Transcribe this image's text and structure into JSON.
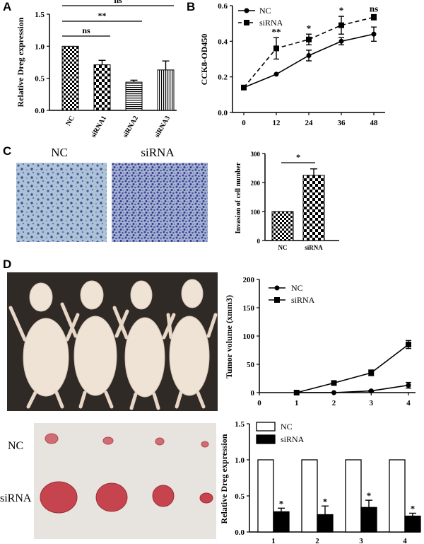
{
  "panels": {
    "a": {
      "letter": "A"
    },
    "b": {
      "letter": "B"
    },
    "c": {
      "letter": "C",
      "photo_labels": [
        "NC",
        "siRNA"
      ]
    },
    "d": {
      "letter": "D",
      "tumor_row_labels": [
        "NC",
        "siRNA"
      ]
    }
  },
  "chart_data": [
    {
      "id": "A",
      "type": "bar",
      "ylabel": "Relative Dreg expression",
      "categories": [
        "NC",
        "siRNA1",
        "siRNA2",
        "siRNA3"
      ],
      "values": [
        1.0,
        0.71,
        0.44,
        0.63
      ],
      "errors": [
        0.0,
        0.07,
        0.03,
        0.14
      ],
      "ylim": [
        0,
        1.5
      ],
      "yticks": [
        "0.0",
        "0.5",
        "1.0",
        "1.5"
      ],
      "patterns": [
        "checker-fine",
        "checker",
        "horizontal",
        "vertical"
      ],
      "significance": [
        {
          "label": "ns",
          "from": "NC",
          "to": "siRNA3"
        },
        {
          "label": "**",
          "from": "NC",
          "to": "siRNA2"
        },
        {
          "label": "ns",
          "from": "NC",
          "to": "siRNA1"
        }
      ]
    },
    {
      "id": "B",
      "type": "line",
      "ylabel": "CCK8-OD450",
      "x": [
        0,
        12,
        24,
        36,
        48
      ],
      "xticks": [
        "0",
        "12",
        "24",
        "36",
        "48"
      ],
      "ylim": [
        0,
        0.6
      ],
      "yticks": [
        "0.0",
        "0.2",
        "0.4",
        "0.6"
      ],
      "series": [
        {
          "name": "NC",
          "values": [
            0.14,
            0.215,
            0.32,
            0.4,
            0.44
          ],
          "errors": [
            0,
            0,
            0.03,
            0.02,
            0.04
          ],
          "marker": "circle",
          "dash": false
        },
        {
          "name": "siRNA",
          "values": [
            0.14,
            0.36,
            0.41,
            0.49,
            0.535
          ],
          "errors": [
            0,
            0.06,
            0.03,
            0.05,
            0.015
          ],
          "marker": "square",
          "dash": true
        }
      ],
      "annotations": [
        {
          "x": 12,
          "label": "**"
        },
        {
          "x": 24,
          "label": "*"
        },
        {
          "x": 36,
          "label": "*"
        },
        {
          "x": 48,
          "label": "ns"
        }
      ],
      "legend": "top-left"
    },
    {
      "id": "C",
      "type": "bar",
      "ylabel": "Invasion of cell number",
      "categories": [
        "NC",
        "siRNA"
      ],
      "values": [
        100,
        225
      ],
      "errors": [
        0,
        22
      ],
      "ylim": [
        0,
        300
      ],
      "yticks": [
        "0",
        "100",
        "200",
        "300"
      ],
      "patterns": [
        "checker-fine",
        "checker"
      ],
      "significance": [
        {
          "label": "*",
          "from": "NC",
          "to": "siRNA"
        }
      ]
    },
    {
      "id": "D-volume",
      "type": "line",
      "ylabel": "Tumor volume (xmm3)",
      "x": [
        1,
        2,
        3,
        4
      ],
      "xticks": [
        "0",
        "1",
        "2",
        "3",
        "4"
      ],
      "xlim": [
        0,
        4
      ],
      "ylim": [
        0,
        200
      ],
      "yticks": [
        "0",
        "50",
        "100",
        "150",
        "200"
      ],
      "series": [
        {
          "name": "NC",
          "values": [
            0,
            17,
            35,
            85
          ],
          "errors": [
            0,
            2,
            5,
            7
          ],
          "marker": "square"
        },
        {
          "name": "siRNA",
          "values": [
            0,
            0,
            3,
            13
          ],
          "errors": [
            0,
            0,
            1,
            5
          ],
          "marker": "circle"
        }
      ],
      "legend_entries": [
        "NC",
        "siRNA"
      ],
      "legend": "top-right"
    },
    {
      "id": "D-expression",
      "type": "bar",
      "ylabel": "Relative Dreg expression",
      "categories": [
        "1",
        "2",
        "3",
        "4"
      ],
      "ylim": [
        0,
        1.5
      ],
      "yticks": [
        "0.0",
        "0.5",
        "1.0",
        "1.5"
      ],
      "series": [
        {
          "name": "NC",
          "values": [
            1.0,
            1.0,
            1.0,
            1.0
          ],
          "errors": [
            0,
            0,
            0,
            0
          ],
          "color": "#ffffff"
        },
        {
          "name": "siRNA",
          "values": [
            0.28,
            0.24,
            0.34,
            0.22
          ],
          "errors": [
            0.05,
            0.12,
            0.1,
            0.04
          ],
          "color": "#000000"
        }
      ],
      "annotations": [
        "*",
        "*",
        "*",
        "*"
      ],
      "legend": "top-left"
    }
  ]
}
